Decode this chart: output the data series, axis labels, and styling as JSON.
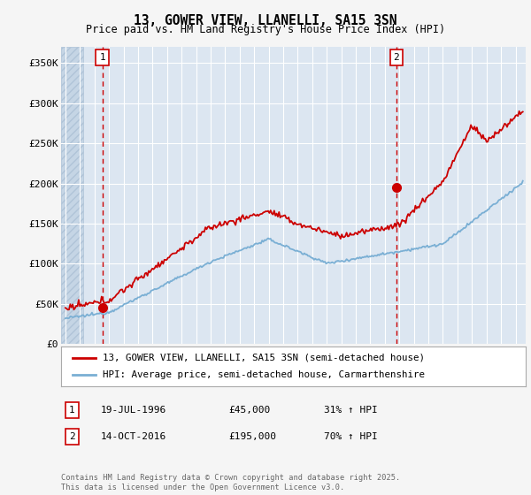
{
  "title": "13, GOWER VIEW, LLANELLI, SA15 3SN",
  "subtitle": "Price paid vs. HM Land Registry's House Price Index (HPI)",
  "ylim": [
    0,
    370000
  ],
  "xlim_start": 1993.7,
  "xlim_end": 2025.7,
  "yticks": [
    0,
    50000,
    100000,
    150000,
    200000,
    250000,
    300000,
    350000
  ],
  "ytick_labels": [
    "£0",
    "£50K",
    "£100K",
    "£150K",
    "£200K",
    "£250K",
    "£300K",
    "£350K"
  ],
  "hatch_end_year": 1995.2,
  "sale1_year": 1996.55,
  "sale1_price": 45000,
  "sale1_label": "1",
  "sale2_year": 2016.79,
  "sale2_price": 195000,
  "sale2_label": "2",
  "legend_line1": "13, GOWER VIEW, LLANELLI, SA15 3SN (semi-detached house)",
  "legend_line2": "HPI: Average price, semi-detached house, Carmarthenshire",
  "table_row1_num": "1",
  "table_row1_date": "19-JUL-1996",
  "table_row1_price": "£45,000",
  "table_row1_hpi": "31% ↑ HPI",
  "table_row2_num": "2",
  "table_row2_date": "14-OCT-2016",
  "table_row2_price": "£195,000",
  "table_row2_hpi": "70% ↑ HPI",
  "copyright_text": "Contains HM Land Registry data © Crown copyright and database right 2025.\nThis data is licensed under the Open Government Licence v3.0.",
  "fig_bg_color": "#f5f5f5",
  "plot_bg_color": "#dce6f1",
  "hatch_color": "#c5d5e5",
  "grid_color": "#ffffff",
  "red_line_color": "#cc0000",
  "blue_line_color": "#7aafd4",
  "dashed_line_color": "#cc0000",
  "sale_dot_color": "#cc0000",
  "legend_border_color": "#aaaaaa",
  "box_border_color": "#cc0000"
}
